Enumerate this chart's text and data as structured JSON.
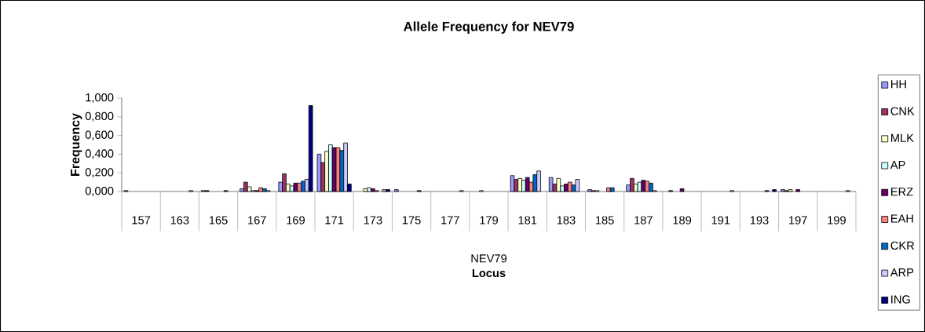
{
  "chart_data": {
    "type": "bar",
    "title": "Allele Frequency for NEV79",
    "xlabel": "Locus",
    "ylabel": "Frequency",
    "annotations": [
      "NEV79"
    ],
    "categories": [
      "157",
      "163",
      "165",
      "167",
      "169",
      "171",
      "173",
      "175",
      "177",
      "179",
      "181",
      "183",
      "185",
      "187",
      "189",
      "191",
      "193",
      "197",
      "199"
    ],
    "ylim": [
      0,
      1
    ],
    "yticks": [
      {
        "value": 0,
        "label": "0,000"
      },
      {
        "value": 0.2,
        "label": "0,200"
      },
      {
        "value": 0.4,
        "label": "0,400"
      },
      {
        "value": 0.6,
        "label": "0,600"
      },
      {
        "value": 0.8,
        "label": "0,800"
      },
      {
        "value": 1,
        "label": "1,000"
      }
    ],
    "legend": "right",
    "series": [
      {
        "name": "HH",
        "color": "#9999ff",
        "values": [
          0.01,
          null,
          0.01,
          0.03,
          0.1,
          0.4,
          null,
          0.02,
          null,
          null,
          0.17,
          0.15,
          0.02,
          0.07,
          null,
          null,
          null,
          0.02,
          null
        ]
      },
      {
        "name": "CNK",
        "color": "#993366",
        "values": [
          null,
          null,
          0.01,
          0.1,
          0.19,
          0.31,
          null,
          null,
          null,
          null,
          0.13,
          0.08,
          0.01,
          0.14,
          0.01,
          null,
          null,
          0.01,
          null
        ]
      },
      {
        "name": "MLK",
        "color": "#ffffcc",
        "values": [
          null,
          null,
          null,
          0.05,
          0.08,
          0.43,
          0.03,
          null,
          null,
          0.01,
          0.14,
          0.14,
          0.01,
          0.08,
          null,
          null,
          null,
          0.02,
          null
        ]
      },
      {
        "name": "AP",
        "color": "#ccffff",
        "values": [
          null,
          null,
          null,
          0.01,
          0.06,
          0.5,
          0.04,
          null,
          null,
          null,
          0.12,
          0.06,
          null,
          0.1,
          null,
          null,
          null,
          null,
          null
        ]
      },
      {
        "name": "ERZ",
        "color": "#660066",
        "values": [
          null,
          null,
          null,
          0.01,
          0.09,
          0.47,
          0.03,
          null,
          null,
          null,
          0.15,
          0.08,
          null,
          0.12,
          0.03,
          null,
          null,
          0.02,
          null
        ]
      },
      {
        "name": "EAH",
        "color": "#ff8080",
        "values": [
          null,
          null,
          null,
          0.04,
          0.09,
          0.47,
          0.01,
          null,
          null,
          null,
          0.1,
          0.1,
          0.04,
          0.11,
          null,
          null,
          null,
          null,
          null
        ]
      },
      {
        "name": "CKR",
        "color": "#0066cc",
        "values": [
          null,
          null,
          0.01,
          0.03,
          0.11,
          0.44,
          null,
          0.01,
          null,
          null,
          0.18,
          0.07,
          0.04,
          0.09,
          null,
          null,
          0.01,
          null,
          null
        ]
      },
      {
        "name": "ARP",
        "color": "#ccccff",
        "values": [
          null,
          0.01,
          null,
          0.01,
          0.13,
          0.52,
          0.02,
          null,
          0.01,
          null,
          0.22,
          0.13,
          null,
          0.01,
          null,
          0.01,
          null,
          null,
          0.01
        ]
      },
      {
        "name": "ING",
        "color": "#000080",
        "values": [
          null,
          null,
          null,
          null,
          0.92,
          0.08,
          0.02,
          null,
          null,
          null,
          null,
          null,
          null,
          null,
          null,
          null,
          0.02,
          null,
          null
        ]
      }
    ]
  }
}
